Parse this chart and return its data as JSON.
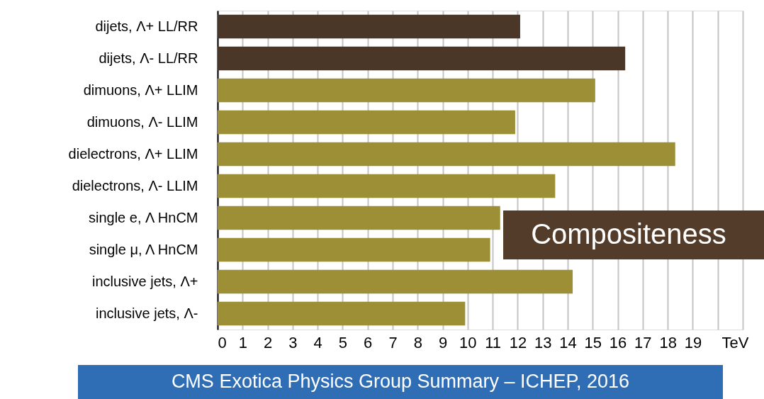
{
  "chart_data": {
    "type": "bar",
    "orientation": "horizontal",
    "categories": [
      "dijets, Λ+ LL/RR",
      "dijets, Λ- LL/RR",
      "dimuons, Λ+ LLIM",
      "dimuons, Λ- LLIM",
      "dielectrons, Λ+ LLIM",
      "dielectrons, Λ- LLIM",
      "single e,  Λ HnCM",
      "single μ, Λ HnCM",
      "inclusive jets, Λ+",
      "inclusive jets, Λ-"
    ],
    "values": [
      12.1,
      16.3,
      15.1,
      11.9,
      18.3,
      13.5,
      11.3,
      10.9,
      14.2,
      9.9
    ],
    "colors": [
      "#4a3728",
      "#4a3728",
      "#9c8f35",
      "#9c8f35",
      "#9c8f35",
      "#9c8f35",
      "#9c8f35",
      "#9c8f35",
      "#9c8f35",
      "#9c8f35"
    ],
    "xlabel": "TeV",
    "xlim": [
      0,
      21
    ],
    "xticks": [
      0,
      1,
      2,
      3,
      4,
      5,
      6,
      7,
      8,
      9,
      10,
      11,
      12,
      13,
      14,
      15,
      16,
      17,
      18,
      19,
      {
        "value": 20,
        "label": null
      },
      {
        "value": 21,
        "label": null
      }
    ],
    "grid": "x",
    "annotations": [
      "Compositeness",
      "CMS Exotica Physics Group Summary – ICHEP, 2016"
    ]
  }
}
